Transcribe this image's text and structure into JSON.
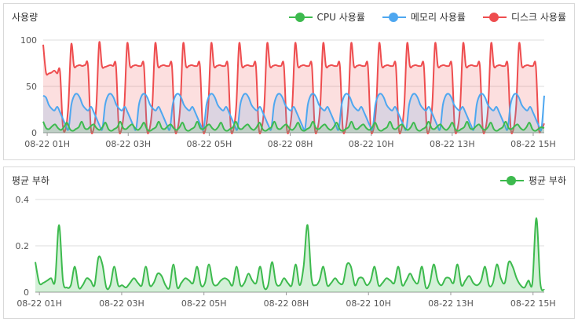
{
  "usage_panel": {
    "title": "사용량",
    "legend": [
      {
        "label": "CPU 사용률",
        "color": "#3dba4e"
      },
      {
        "label": "메모리 사용률",
        "color": "#4ea7f0"
      },
      {
        "label": "디스크 사용률",
        "color": "#ee4d4f"
      }
    ]
  },
  "load_panel": {
    "title": "평균 부하",
    "legend": [
      {
        "label": "평균 부하",
        "color": "#3dba4e"
      }
    ]
  },
  "chart_data": [
    {
      "type": "line",
      "title": "사용량",
      "x_ticks": [
        "08-22 01H",
        "08-22 03H",
        "08-22 05H",
        "08-22 08H",
        "08-22 10H",
        "08-22 13H",
        "08-22 15H"
      ],
      "y_ticks": [
        "0",
        "50",
        "100"
      ],
      "ylim": [
        0,
        100
      ],
      "grid": true,
      "legend_position": "top-right",
      "series": [
        {
          "name": "CPU 사용률",
          "color": "#3dba4e",
          "values": [
            12,
            5,
            4,
            7,
            9,
            5,
            3,
            6,
            11,
            4,
            2,
            4,
            6,
            12,
            5,
            4,
            7,
            9,
            5,
            3,
            6,
            11,
            4,
            2,
            4,
            6,
            12,
            5,
            4,
            7,
            9,
            5,
            3,
            6,
            11,
            4,
            2,
            4,
            6,
            12,
            5,
            4,
            7,
            9,
            5,
            3,
            6,
            11,
            4,
            2,
            4,
            6,
            12,
            5,
            4,
            7,
            9,
            5,
            3,
            6,
            11,
            4,
            2,
            4,
            6,
            12,
            5,
            4,
            7,
            9,
            5,
            3,
            6,
            11,
            4,
            2,
            4,
            6,
            12,
            5,
            4,
            7,
            9,
            5,
            3,
            6,
            11,
            4,
            2,
            4,
            6,
            12,
            5,
            4,
            7,
            9,
            5,
            3,
            6,
            11,
            4,
            2,
            4,
            6,
            12,
            5,
            4,
            7,
            9,
            5,
            3,
            6,
            11,
            4,
            2,
            4,
            6,
            12,
            5,
            4,
            7,
            9,
            5,
            3,
            6,
            11,
            4,
            2,
            4,
            6,
            12,
            5,
            4,
            7,
            9,
            5,
            3,
            6,
            11,
            4,
            2,
            4,
            6,
            12,
            5,
            4,
            7,
            9,
            5,
            3,
            6,
            11,
            4,
            2,
            4,
            6,
            12,
            5,
            4,
            7,
            9,
            5,
            3,
            6,
            11,
            4,
            2,
            4,
            6,
            5
          ]
        },
        {
          "name": "메모리 사용률",
          "color": "#4ea7f0",
          "values": [
            40,
            38,
            30,
            26,
            24,
            28,
            22,
            15,
            8,
            4,
            30,
            40,
            42,
            38,
            30,
            26,
            24,
            28,
            22,
            15,
            8,
            4,
            30,
            40,
            42,
            38,
            30,
            26,
            24,
            28,
            22,
            15,
            8,
            4,
            30,
            40,
            42,
            38,
            30,
            26,
            24,
            28,
            22,
            15,
            8,
            4,
            30,
            40,
            42,
            38,
            30,
            26,
            24,
            28,
            22,
            15,
            8,
            4,
            30,
            40,
            42,
            38,
            30,
            26,
            24,
            28,
            22,
            15,
            8,
            4,
            30,
            40,
            42,
            38,
            30,
            26,
            24,
            28,
            22,
            15,
            8,
            4,
            30,
            40,
            42,
            38,
            30,
            26,
            24,
            28,
            22,
            15,
            8,
            4,
            30,
            40,
            42,
            38,
            30,
            26,
            24,
            28,
            22,
            15,
            8,
            4,
            30,
            40,
            42,
            38,
            30,
            26,
            24,
            28,
            22,
            15,
            8,
            4,
            30,
            40,
            42,
            38,
            30,
            26,
            24,
            28,
            22,
            15,
            8,
            4,
            30,
            40,
            42,
            38,
            30,
            26,
            24,
            28,
            22,
            15,
            8,
            4,
            30,
            40,
            42,
            38,
            30,
            26,
            24,
            28,
            22,
            15,
            8,
            4,
            30,
            40,
            42,
            38,
            30,
            26,
            24,
            28,
            22,
            15,
            8,
            4,
            30,
            40,
            42,
            38,
            30,
            26,
            24,
            28,
            22,
            15,
            8,
            4,
            40
          ]
        },
        {
          "name": "디스크 사용률",
          "color": "#ee4d4f",
          "values": [
            95,
            65,
            64,
            65,
            67,
            64,
            66,
            8,
            4,
            30,
            95,
            72,
            72,
            73,
            72,
            73,
            72,
            6,
            4,
            30,
            97,
            72,
            71,
            72,
            73,
            72,
            72,
            6,
            4,
            30,
            96,
            72,
            72,
            73,
            72,
            72,
            72,
            6,
            4,
            30,
            96,
            72,
            72,
            73,
            72,
            72,
            72,
            6,
            4,
            30,
            96,
            72,
            72,
            73,
            72,
            72,
            72,
            6,
            4,
            30,
            96,
            72,
            72,
            73,
            72,
            72,
            72,
            6,
            4,
            30,
            96,
            72,
            72,
            73,
            72,
            72,
            72,
            6,
            4,
            30,
            96,
            72,
            72,
            73,
            72,
            72,
            72,
            6,
            4,
            30,
            96,
            72,
            72,
            73,
            72,
            72,
            72,
            6,
            4,
            30,
            96,
            72,
            72,
            73,
            72,
            72,
            72,
            6,
            4,
            30,
            96,
            72,
            72,
            73,
            72,
            72,
            72,
            6,
            4,
            30,
            96,
            72,
            72,
            73,
            72,
            72,
            72,
            6,
            4,
            30,
            96,
            72,
            72,
            73,
            72,
            72,
            72,
            6,
            4,
            30,
            96,
            72,
            72,
            73,
            72,
            72,
            72,
            6,
            4,
            30,
            96,
            72,
            72,
            73,
            72,
            72,
            72,
            6,
            4,
            30,
            96,
            72,
            72,
            73,
            72,
            72,
            72,
            6,
            4,
            30,
            96,
            72,
            72,
            73,
            72,
            72,
            72,
            6,
            4,
            10
          ]
        }
      ]
    },
    {
      "type": "area",
      "title": "평균 부하",
      "x_ticks": [
        "08-22 01H",
        "08-22 03H",
        "08-22 05H",
        "08-22 08H",
        "08-22 10H",
        "08-22 13H",
        "08-22 15H"
      ],
      "y_ticks": [
        "0",
        "0.2",
        "0.4"
      ],
      "ylim": [
        0,
        0.4
      ],
      "grid": true,
      "legend_position": "top-right",
      "series": [
        {
          "name": "평균 부하",
          "color": "#3dba4e",
          "values": [
            0.13,
            0.04,
            0.04,
            0.05,
            0.06,
            0.05,
            0.29,
            0.05,
            0.02,
            0.03,
            0.11,
            0.02,
            0.03,
            0.06,
            0.05,
            0.03,
            0.15,
            0.12,
            0.02,
            0.03,
            0.11,
            0.03,
            0.03,
            0.02,
            0.04,
            0.06,
            0.04,
            0.03,
            0.11,
            0.03,
            0.04,
            0.08,
            0.07,
            0.03,
            0.02,
            0.12,
            0.02,
            0.04,
            0.06,
            0.05,
            0.04,
            0.11,
            0.03,
            0.04,
            0.12,
            0.04,
            0.03,
            0.05,
            0.06,
            0.05,
            0.03,
            0.11,
            0.03,
            0.04,
            0.08,
            0.05,
            0.04,
            0.11,
            0.02,
            0.03,
            0.13,
            0.04,
            0.03,
            0.06,
            0.04,
            0.03,
            0.12,
            0.03,
            0.11,
            0.29,
            0.06,
            0.03,
            0.05,
            0.11,
            0.03,
            0.04,
            0.06,
            0.04,
            0.04,
            0.12,
            0.11,
            0.03,
            0.06,
            0.06,
            0.03,
            0.05,
            0.11,
            0.03,
            0.04,
            0.06,
            0.05,
            0.04,
            0.11,
            0.03,
            0.05,
            0.08,
            0.05,
            0.04,
            0.11,
            0.02,
            0.04,
            0.12,
            0.05,
            0.03,
            0.06,
            0.06,
            0.04,
            0.12,
            0.03,
            0.05,
            0.07,
            0.04,
            0.03,
            0.05,
            0.11,
            0.03,
            0.04,
            0.12,
            0.06,
            0.04,
            0.13,
            0.11,
            0.06,
            0.03,
            0.02,
            0.05,
            0.04,
            0.32,
            0.04,
            0.01
          ]
        }
      ]
    }
  ]
}
